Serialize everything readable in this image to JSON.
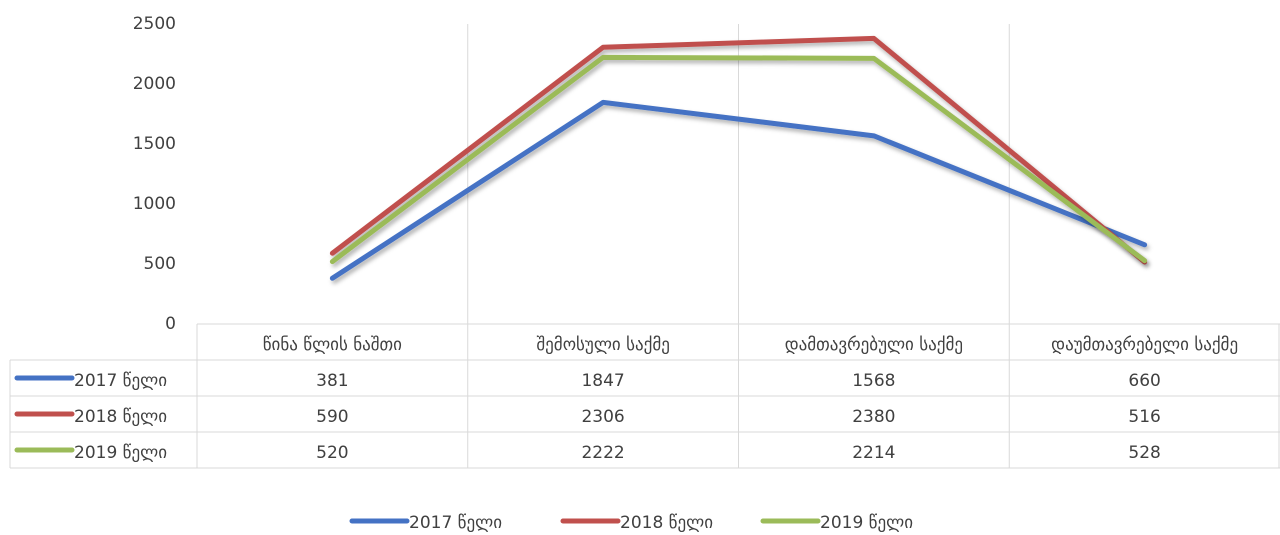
{
  "chart_data": {
    "type": "line",
    "categories": [
      "წინა წლის ნაშთი",
      "შემოსული საქმე",
      "დამთავრებული საქმე",
      "დაუმთავრებელი საქმე"
    ],
    "series": [
      {
        "name": "2017 წელი",
        "color": "#4472c4",
        "values": [
          381,
          1847,
          1568,
          660
        ]
      },
      {
        "name": "2018 წელი",
        "color": "#c0504d",
        "values": [
          590,
          2306,
          2380,
          516
        ]
      },
      {
        "name": "2019 წელი",
        "color": "#9bbb59",
        "values": [
          520,
          2222,
          2214,
          528
        ]
      }
    ],
    "ylim": [
      0,
      2500
    ],
    "yticks": [
      0,
      500,
      1000,
      1500,
      2000,
      2500
    ]
  }
}
